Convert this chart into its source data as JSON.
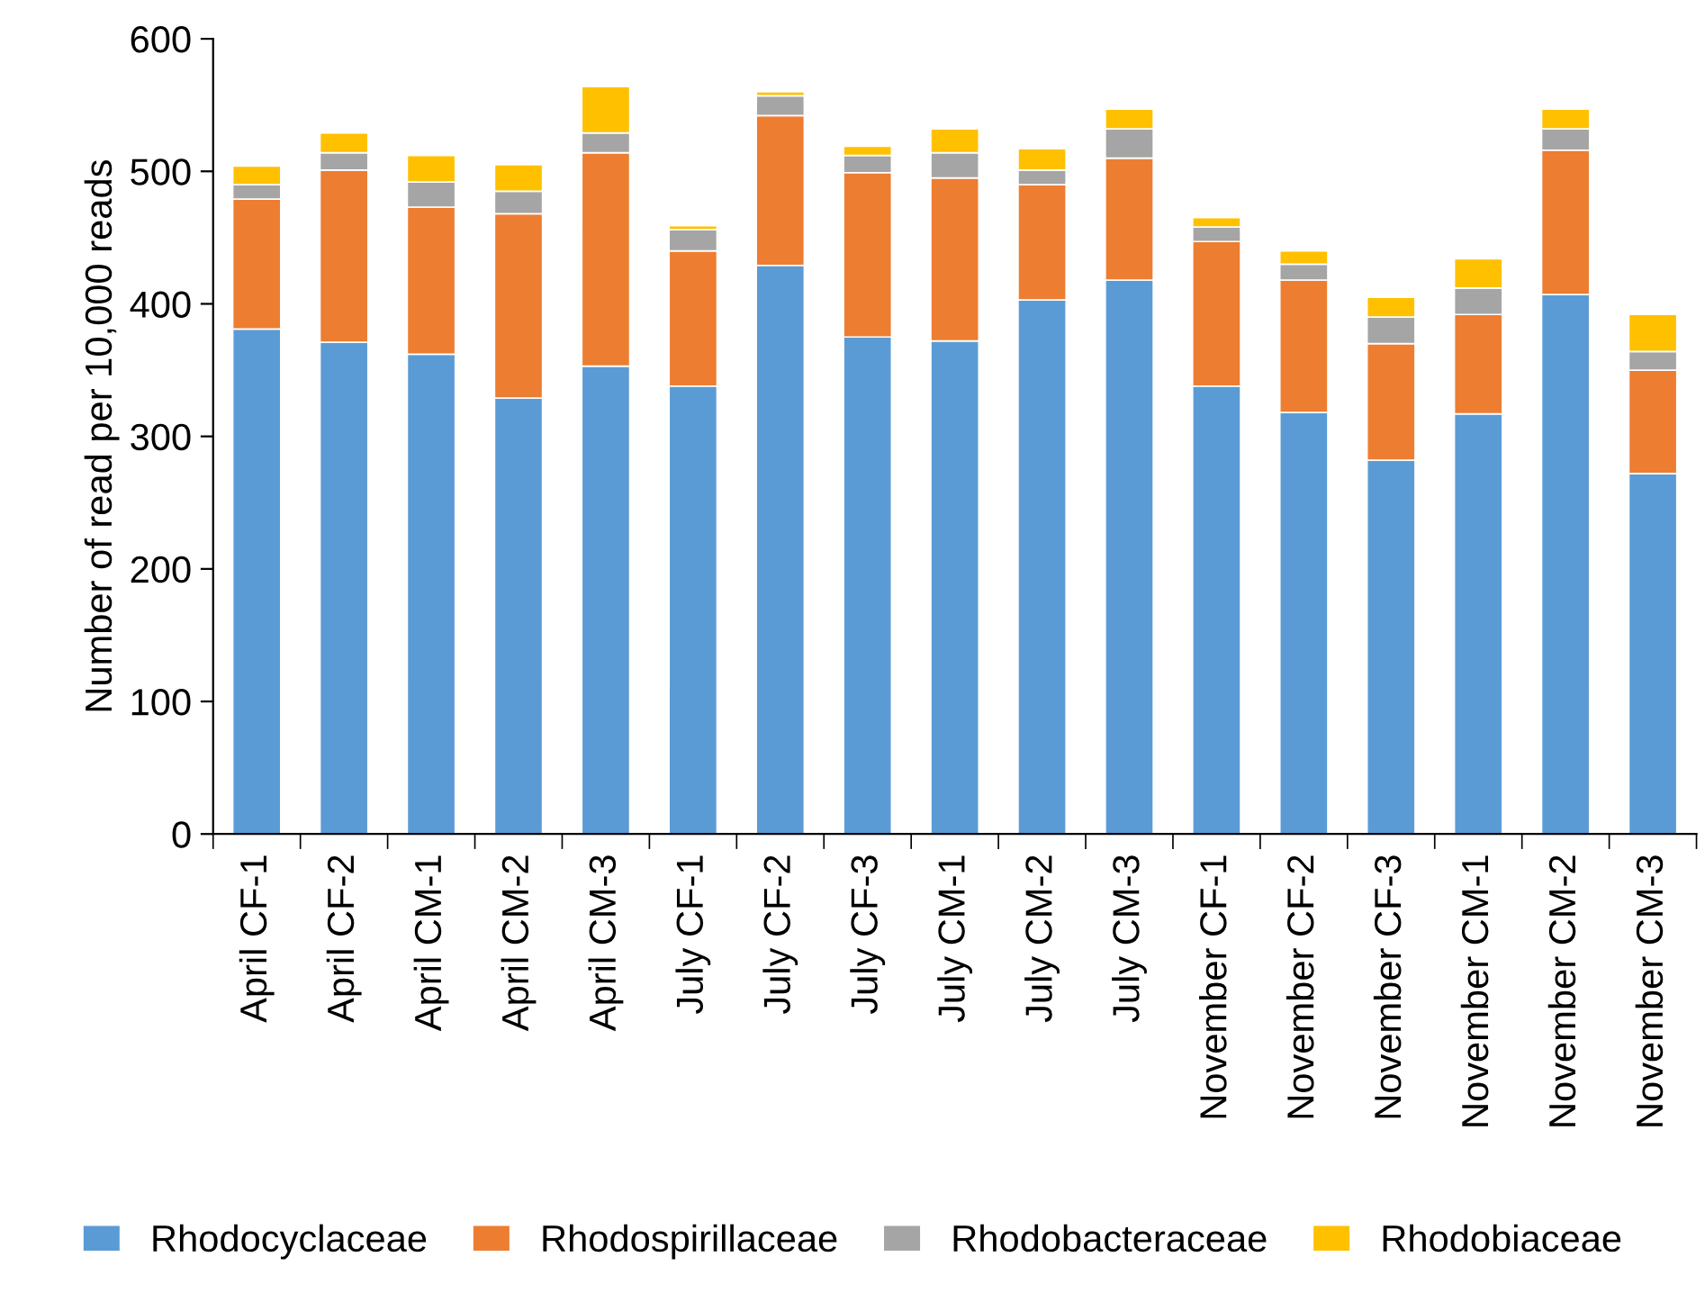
{
  "chart_data": {
    "type": "bar",
    "stacked": true,
    "ylabel": "Number of read per 10,000 reads",
    "categories": [
      "April CF-1",
      "April CF-2",
      "April CM-1",
      "April CM-2",
      "April CM-3",
      "July CF-1",
      "July CF-2",
      "July CF-3",
      "July CM-1",
      "July CM-2",
      "July CM-3",
      "November CF-1",
      "November CF-2",
      "November CF-3",
      "November CM-1",
      "November CM-2",
      "November CM-3"
    ],
    "series": [
      {
        "name": "Rhodocyclaceae",
        "color": "#5b9bd5",
        "values": [
          381,
          371,
          362,
          329,
          353,
          338,
          429,
          375,
          372,
          403,
          418,
          338,
          318,
          282,
          317,
          407,
          272
        ]
      },
      {
        "name": "Rhodospirillaceae",
        "color": "#ed7d31",
        "values": [
          98,
          130,
          111,
          139,
          161,
          102,
          113,
          124,
          123,
          87,
          92,
          109,
          100,
          88,
          75,
          109,
          78
        ]
      },
      {
        "name": "Rhodobacteraceae",
        "color": "#a5a5a5",
        "values": [
          11,
          13,
          19,
          17,
          15,
          16,
          15,
          13,
          19,
          11,
          22,
          11,
          12,
          20,
          20,
          16,
          14
        ]
      },
      {
        "name": "Rhodobiaceae",
        "color": "#ffc000",
        "values": [
          14,
          15,
          20,
          20,
          35,
          3,
          3,
          7,
          18,
          16,
          15,
          7,
          10,
          15,
          22,
          15,
          28
        ]
      }
    ],
    "ylim": [
      0,
      600
    ],
    "yticks": [
      0,
      100,
      200,
      300,
      400,
      500,
      600
    ],
    "grid": false,
    "legend": "bottom"
  }
}
